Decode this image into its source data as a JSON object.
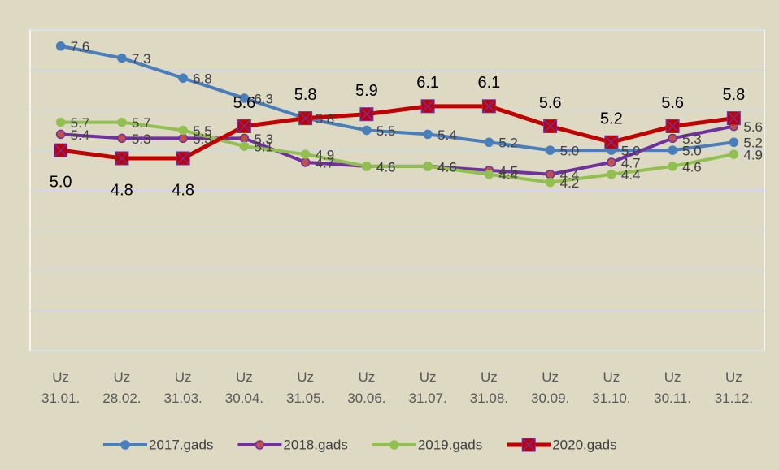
{
  "chart_data": {
    "type": "line",
    "categories": [
      "Uz 31.01.",
      "Uz 28.02.",
      "Uz 31.03.",
      "Uz 30.04.",
      "Uz 31.05.",
      "Uz 30.06.",
      "Uz 31.07.",
      "Uz 31.08.",
      "Uz 30.09.",
      "Uz 31.10.",
      "Uz 30.11.",
      "Uz 31.12."
    ],
    "series": [
      {
        "name": "2017.gads",
        "color": "#4a7ebb",
        "values": [
          7.6,
          7.3,
          6.8,
          6.3,
          5.8,
          5.5,
          5.4,
          5.2,
          5.0,
          5.0,
          5.0,
          5.2
        ],
        "value_labels": [
          "7.6",
          "7.3",
          "6.8",
          "6.3",
          "5.8",
          "5.5",
          "5.4",
          "5.2",
          "5.0",
          "5.0",
          "5.0",
          "5.2"
        ]
      },
      {
        "name": "2018.gads",
        "color": "#7030a0",
        "values": [
          5.4,
          5.3,
          5.3,
          5.3,
          4.7,
          4.6,
          4.6,
          4.5,
          4.4,
          4.7,
          5.3,
          5.6
        ],
        "value_labels": [
          "5.4",
          "5.3",
          "5.3",
          "5.3",
          "4.7",
          "4.6",
          "4.6",
          "4.5",
          "4.4",
          "4.7",
          "5.3",
          "5.6"
        ]
      },
      {
        "name": "2019.gads",
        "color": "#92c050",
        "values": [
          5.7,
          5.7,
          5.5,
          5.1,
          4.9,
          4.6,
          4.6,
          4.4,
          4.2,
          4.4,
          4.6,
          4.9
        ],
        "value_labels": [
          "5.7",
          "5.7",
          "5.5",
          "5.1",
          "4.9",
          "4.6",
          "4.6",
          "4.4",
          "4.2",
          "4.4",
          "4.6",
          "4.9"
        ]
      },
      {
        "name": "2020.gads",
        "color": "#c00000",
        "values": [
          5.0,
          4.8,
          4.8,
          5.6,
          5.8,
          5.9,
          6.1,
          6.1,
          5.6,
          5.2,
          5.6,
          5.8
        ],
        "value_labels": [
          "5.0",
          "4.8",
          "4.8",
          "5.6",
          "5.8",
          "5.9",
          "6.1",
          "6.1",
          "5.6",
          "5.2",
          "5.6",
          "5.8"
        ]
      }
    ],
    "ylim": [
      0,
      8
    ],
    "yticks": [
      0,
      1,
      2,
      3,
      4,
      5,
      6,
      7,
      8
    ],
    "grid": true,
    "legend": "bottom"
  }
}
